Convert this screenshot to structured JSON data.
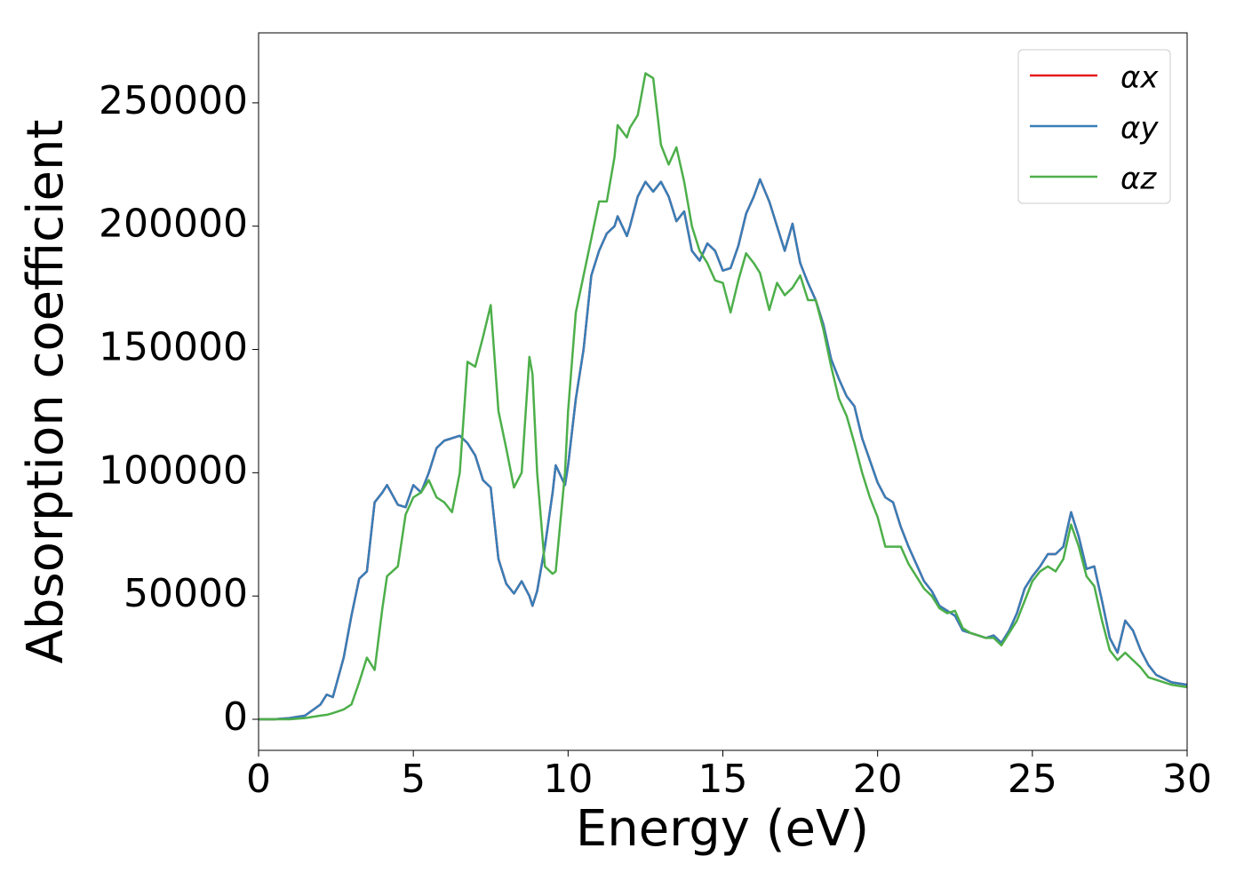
{
  "chart_data": {
    "type": "line",
    "xlabel": "Energy (eV)",
    "ylabel": "Absorption coefficient",
    "x": [
      0,
      0.5,
      1,
      1.5,
      2,
      2.2,
      2.4,
      2.75,
      3,
      3.25,
      3.5,
      3.75,
      4,
      4.15,
      4.5,
      4.75,
      5,
      5.25,
      5.5,
      5.75,
      6,
      6.25,
      6.5,
      6.75,
      7,
      7.25,
      7.5,
      7.75,
      8,
      8.25,
      8.5,
      8.75,
      8.85,
      9,
      9.25,
      9.5,
      9.6,
      9.9,
      10,
      10.25,
      10.5,
      10.75,
      11,
      11.25,
      11.5,
      11.6,
      11.9,
      12,
      12.25,
      12.5,
      12.75,
      13,
      13.25,
      13.5,
      13.75,
      14,
      14.25,
      14.5,
      14.75,
      15,
      15.25,
      15.5,
      15.75,
      16,
      16.2,
      16.5,
      16.75,
      17,
      17.25,
      17.5,
      17.75,
      18,
      18.25,
      18.5,
      18.75,
      19,
      19.25,
      19.5,
      19.75,
      20,
      20.25,
      20.5,
      20.75,
      21,
      21.25,
      21.5,
      21.75,
      22,
      22.25,
      22.5,
      22.75,
      23,
      23.25,
      23.5,
      23.75,
      24,
      24.25,
      24.5,
      24.75,
      25,
      25.25,
      25.5,
      25.75,
      26,
      26.25,
      26.5,
      26.75,
      27,
      27.25,
      27.5,
      27.75,
      28,
      28.25,
      28.5,
      28.75,
      29,
      29.5,
      30
    ],
    "series": [
      {
        "name": "αx",
        "color": "#e41a1c",
        "values": [
          0,
          0,
          500,
          1500,
          6000,
          10000,
          9000,
          25000,
          42000,
          57000,
          60000,
          88000,
          92000,
          95000,
          87000,
          86000,
          95000,
          92000,
          100000,
          110000,
          113000,
          114000,
          115000,
          112000,
          107000,
          97000,
          94000,
          65000,
          55000,
          51000,
          56000,
          50000,
          46000,
          52000,
          70000,
          92000,
          103000,
          95000,
          103000,
          130000,
          150000,
          180000,
          190000,
          197000,
          200000,
          204000,
          196000,
          200000,
          212000,
          218000,
          214000,
          218000,
          212000,
          202000,
          206000,
          190000,
          186000,
          193000,
          190000,
          182000,
          183000,
          192000,
          205000,
          212000,
          219000,
          210000,
          200000,
          190000,
          201000,
          185000,
          177000,
          170000,
          160000,
          146000,
          138000,
          131000,
          127000,
          114000,
          105000,
          96000,
          90000,
          88000,
          78000,
          70000,
          63000,
          56000,
          52000,
          46000,
          44000,
          42000,
          36000,
          35000,
          34000,
          33000,
          34000,
          31000,
          36000,
          43000,
          53000,
          58000,
          62000,
          67000,
          67000,
          70000,
          84000,
          74000,
          61000,
          62000,
          48000,
          33000,
          27000,
          40000,
          36000,
          28000,
          22000,
          18000,
          15000,
          14000
        ]
      },
      {
        "name": "αy",
        "color": "#377eb8",
        "values": [
          0,
          0,
          500,
          1500,
          6000,
          10000,
          9000,
          25000,
          42000,
          57000,
          60000,
          88000,
          92000,
          95000,
          87000,
          86000,
          95000,
          92000,
          100000,
          110000,
          113000,
          114000,
          115000,
          112000,
          107000,
          97000,
          94000,
          65000,
          55000,
          51000,
          56000,
          50000,
          46000,
          52000,
          70000,
          92000,
          103000,
          95000,
          103000,
          130000,
          150000,
          180000,
          190000,
          197000,
          200000,
          204000,
          196000,
          200000,
          212000,
          218000,
          214000,
          218000,
          212000,
          202000,
          206000,
          190000,
          186000,
          193000,
          190000,
          182000,
          183000,
          192000,
          205000,
          212000,
          219000,
          210000,
          200000,
          190000,
          201000,
          185000,
          177000,
          170000,
          160000,
          146000,
          138000,
          131000,
          127000,
          114000,
          105000,
          96000,
          90000,
          88000,
          78000,
          70000,
          63000,
          56000,
          52000,
          46000,
          44000,
          42000,
          36000,
          35000,
          34000,
          33000,
          34000,
          31000,
          36000,
          43000,
          53000,
          58000,
          62000,
          67000,
          67000,
          70000,
          84000,
          74000,
          61000,
          62000,
          48000,
          33000,
          27000,
          40000,
          36000,
          28000,
          22000,
          18000,
          15000,
          14000
        ]
      },
      {
        "name": "αz",
        "color": "#4daf4a",
        "values": [
          0,
          0,
          0,
          500,
          1500,
          1800,
          2500,
          4000,
          6000,
          15000,
          25000,
          20000,
          45000,
          58000,
          62000,
          83000,
          90000,
          92000,
          97000,
          90000,
          88000,
          84000,
          100000,
          145000,
          143000,
          155000,
          168000,
          125000,
          110000,
          94000,
          100000,
          147000,
          140000,
          100000,
          62000,
          59000,
          60000,
          100000,
          125000,
          165000,
          180000,
          195000,
          210000,
          210000,
          228000,
          241000,
          236000,
          240000,
          245000,
          262000,
          260000,
          233000,
          225000,
          232000,
          218000,
          200000,
          190000,
          185000,
          178000,
          177000,
          165000,
          178000,
          189000,
          185000,
          181000,
          166000,
          177000,
          172000,
          175000,
          180000,
          170000,
          170000,
          158000,
          143000,
          130000,
          123000,
          112000,
          100000,
          90000,
          82000,
          70000,
          70000,
          70000,
          63000,
          58000,
          53000,
          50000,
          45000,
          43000,
          44000,
          37000,
          35000,
          34000,
          33000,
          33000,
          30000,
          35000,
          40000,
          48000,
          56000,
          60000,
          62000,
          60000,
          65000,
          79000,
          70000,
          58000,
          54000,
          40000,
          28000,
          24000,
          27000,
          24000,
          21000,
          17000,
          16000,
          14000,
          13000
        ]
      }
    ],
    "xlim": [
      0,
      30
    ],
    "xticks": [
      0,
      5,
      10,
      15,
      20,
      25,
      30
    ],
    "ylim": [
      -12600,
      278400
    ],
    "yticks": [
      0,
      50000,
      100000,
      150000,
      200000,
      250000
    ],
    "legend": "upper right"
  }
}
